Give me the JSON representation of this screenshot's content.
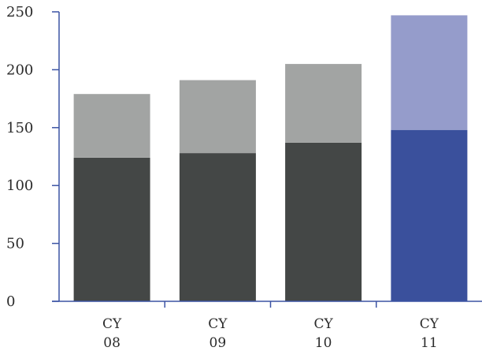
{
  "chart_data": {
    "type": "bar",
    "stacked": true,
    "categories": [
      {
        "line1": "CY",
        "line2": "08"
      },
      {
        "line1": "CY",
        "line2": "09"
      },
      {
        "line1": "CY",
        "line2": "10"
      },
      {
        "line1": "CY",
        "line2": "11"
      }
    ],
    "series": [
      {
        "values": [
          124,
          128,
          137,
          148
        ],
        "colors": [
          "#444746",
          "#444746",
          "#444746",
          "#3a509c"
        ]
      },
      {
        "values": [
          55,
          63,
          68,
          99
        ],
        "colors": [
          "#a2a4a3",
          "#a2a4a3",
          "#a2a4a3",
          "#959ccb"
        ]
      }
    ],
    "ylim": [
      0,
      250
    ],
    "yticks": [
      0,
      50,
      100,
      150,
      200,
      250
    ],
    "axis_color": "#3b53a4",
    "title": "",
    "xlabel": "",
    "ylabel": "",
    "legend": false,
    "grid": false
  }
}
